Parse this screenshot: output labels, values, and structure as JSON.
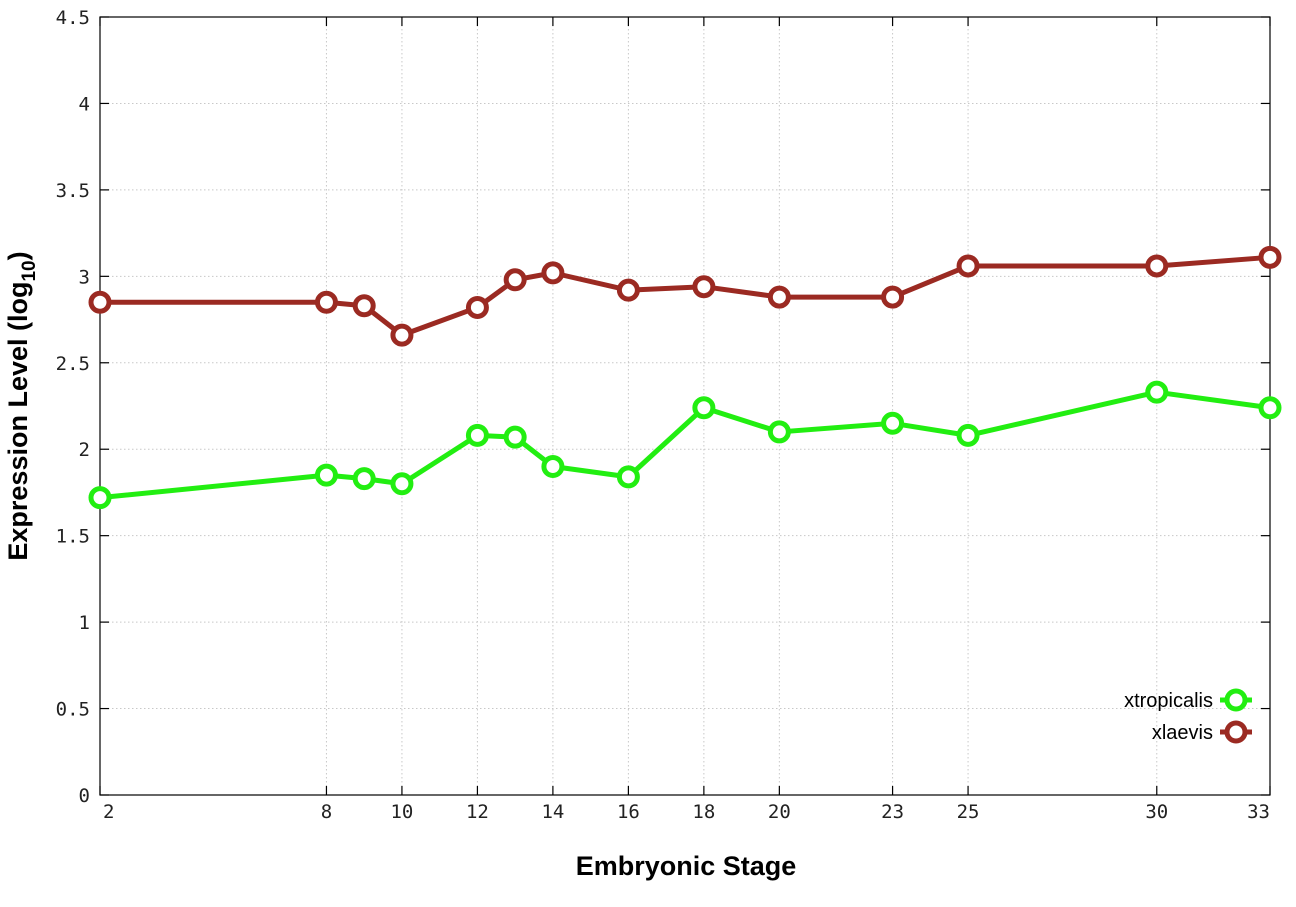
{
  "chart_data": {
    "type": "line",
    "xlabel": "Embryonic Stage",
    "ylabel": "Expression Level (log",
    "ylabel_sub": "10",
    "ylabel_suffix": ")",
    "x_categories": [
      "2",
      "8",
      "9",
      "10",
      "12",
      "13",
      "14",
      "16",
      "18",
      "20",
      "23",
      "25",
      "30",
      "33"
    ],
    "x_ticks": [
      "2",
      "8",
      "10",
      "12",
      "14",
      "16",
      "18",
      "20",
      "23",
      "25",
      "30",
      "33"
    ],
    "y_ticks": [
      "0",
      "0.5",
      "1",
      "1.5",
      "2",
      "2.5",
      "3",
      "3.5",
      "4",
      "4.5"
    ],
    "ylim": [
      0,
      4.5
    ],
    "grid": true,
    "legend_position": "bottom-right",
    "series": [
      {
        "name": "xtropicalis",
        "color": "#22ee11",
        "values": [
          1.72,
          1.85,
          1.83,
          1.8,
          2.08,
          2.07,
          1.9,
          1.84,
          2.24,
          2.1,
          2.15,
          2.08,
          2.33,
          2.24
        ]
      },
      {
        "name": "xlaevis",
        "color": "#9b2a22",
        "values": [
          2.85,
          2.85,
          2.83,
          2.66,
          2.82,
          2.98,
          3.02,
          2.92,
          2.94,
          2.88,
          2.88,
          3.06,
          3.06,
          3.11
        ]
      }
    ]
  }
}
